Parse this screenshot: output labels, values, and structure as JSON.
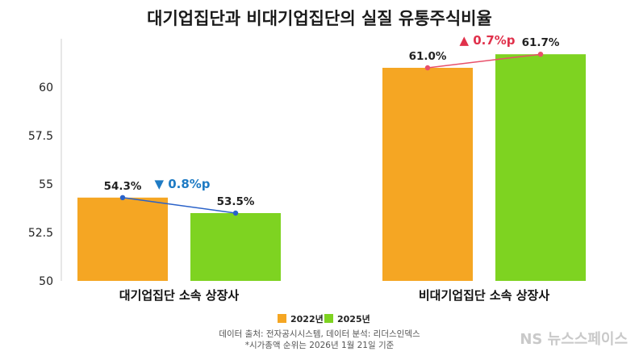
{
  "chart_data": {
    "type": "bar",
    "title": "대기업집단과 비대기업집단의 실질 유통주식비율",
    "categories": [
      "대기업집단 소속 상장사",
      "비대기업집단 소속 상장사"
    ],
    "series": [
      {
        "name": "2022년",
        "color": "#F5A623",
        "values": [
          54.3,
          61.0
        ],
        "labels": [
          "54.3%",
          "61.0%"
        ]
      },
      {
        "name": "2025년",
        "color": "#7ED321",
        "values": [
          53.5,
          61.7
        ],
        "labels": [
          "53.5%",
          "61.7%"
        ]
      }
    ],
    "yticks": [
      "50",
      "52.5",
      "55",
      "57.5",
      "60"
    ],
    "ylim": [
      50,
      62.5
    ],
    "changes": [
      {
        "text": "0.8%p",
        "marker": "▼",
        "color": "#1E7BC4",
        "direction": "down"
      },
      {
        "text": "0.7%p",
        "marker": "▲",
        "color": "#E0314B",
        "direction": "up"
      }
    ],
    "trend_line_colors": [
      "#2A62C9",
      "#E8506A"
    ],
    "grid": false,
    "legend_position": "bottom"
  },
  "footer": {
    "source_line1": "데이터 출처: 전자공시시스템, 데이터 분석: 리더스인덱스",
    "source_line2": "*시가총액 순위는 2026년 1월 21일 기준",
    "brand": "NS 뉴스스페이스"
  }
}
